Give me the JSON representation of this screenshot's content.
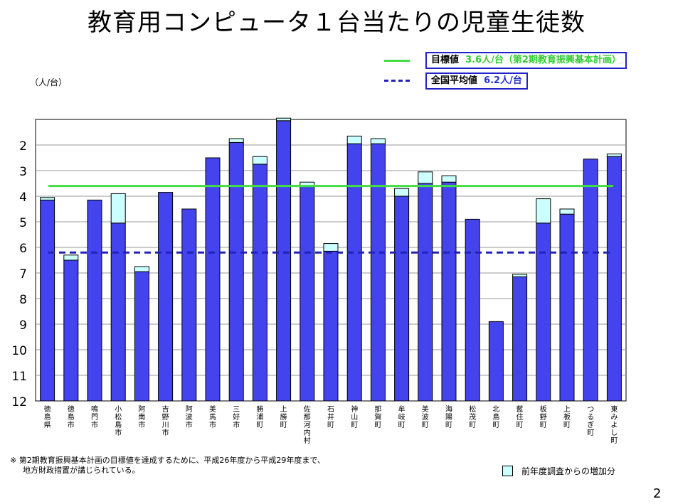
{
  "title": "教育用コンピュータ１台当たりの児童生徒数",
  "unit_label": "（人/台）",
  "legend": {
    "target": {
      "label": "目標値",
      "value": "3.6人/台（第2期教育振興基本計画）",
      "color": "#44dd44"
    },
    "average": {
      "label": "全国平均値",
      "value": "6.2人/台",
      "color": "#2222bb"
    },
    "increase": {
      "label": "前年度調査からの増加分",
      "color": "#ccffff"
    }
  },
  "footnote": {
    "line1": "※ 第2期教育振興基本計画の目標値を達成するために、平成26年度から平成29年度まで、",
    "line2": "地方財政措置が講じられている。"
  },
  "page_number": "2",
  "chart_data": {
    "type": "bar",
    "orientation": "vertical",
    "y_axis": {
      "inverted": true,
      "min": 1.0,
      "max": 12,
      "ticks": [
        2,
        3,
        4,
        5,
        6,
        7,
        8,
        9,
        10,
        11,
        12
      ]
    },
    "grid": true,
    "bar_color": "#4444ee",
    "increase_color": "#ccffff",
    "reference_lines": [
      {
        "name": "目標値",
        "value": 3.6,
        "style": "solid",
        "color": "#44dd44"
      },
      {
        "name": "全国平均値",
        "value": 6.2,
        "style": "dashed",
        "color": "#2222bb"
      }
    ],
    "categories": [
      "徳島県",
      "徳島市",
      "鳴門市",
      "小松島市",
      "阿南市",
      "吉野川市",
      "阿波市",
      "美馬市",
      "三好市",
      "勝浦町",
      "上勝町",
      "佐那河内村",
      "石井町",
      "神山町",
      "那賀町",
      "牟岐町",
      "美波町",
      "海陽町",
      "松茂町",
      "北島町",
      "藍住町",
      "板野町",
      "上板町",
      "つるぎ町",
      "東みよし町"
    ],
    "values": [
      4.15,
      6.5,
      4.15,
      5.05,
      6.95,
      3.85,
      4.5,
      2.5,
      1.9,
      2.75,
      1.05,
      3.6,
      6.15,
      1.95,
      1.95,
      4.0,
      3.5,
      3.45,
      4.9,
      8.9,
      7.15,
      5.05,
      4.7,
      2.55,
      2.45
    ],
    "increases": [
      0.1,
      0.2,
      0,
      1.15,
      0.2,
      0,
      0,
      0,
      0.15,
      0.3,
      0.1,
      0.15,
      0.3,
      0.3,
      0.2,
      0.3,
      0.45,
      0.25,
      0,
      0,
      0.1,
      0.95,
      0.2,
      0,
      0.1
    ]
  }
}
